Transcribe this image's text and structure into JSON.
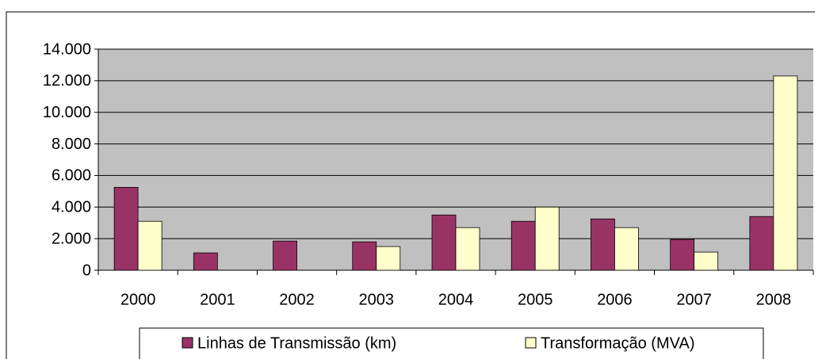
{
  "chart_data": {
    "type": "bar",
    "categories": [
      "2000",
      "2001",
      "2002",
      "2003",
      "2004",
      "2005",
      "2006",
      "2007",
      "2008"
    ],
    "series": [
      {
        "name": "Linhas de Transmissão (km)",
        "color": "#993366",
        "values": [
          5250,
          1100,
          1850,
          1800,
          3500,
          3100,
          3250,
          1950,
          3400
        ]
      },
      {
        "name": "Transformação (MVA)",
        "color": "#ffffcc",
        "values": [
          3100,
          0,
          0,
          1500,
          2700,
          4000,
          2700,
          1150,
          12300
        ]
      }
    ],
    "ylim": [
      0,
      14000
    ],
    "yticks": [
      0,
      {
        "value": 2000,
        "label": "2.000"
      },
      {
        "value": 4000,
        "label": "4.000"
      },
      {
        "value": 6000,
        "label": "6.000"
      },
      {
        "value": 8000,
        "label": "8.000"
      },
      {
        "value": 10000,
        "label": "10.000"
      },
      {
        "value": 12000,
        "label": "12.000"
      },
      {
        "value": 14000,
        "label": "14.000"
      }
    ],
    "grid": true,
    "legend": "bottom"
  }
}
